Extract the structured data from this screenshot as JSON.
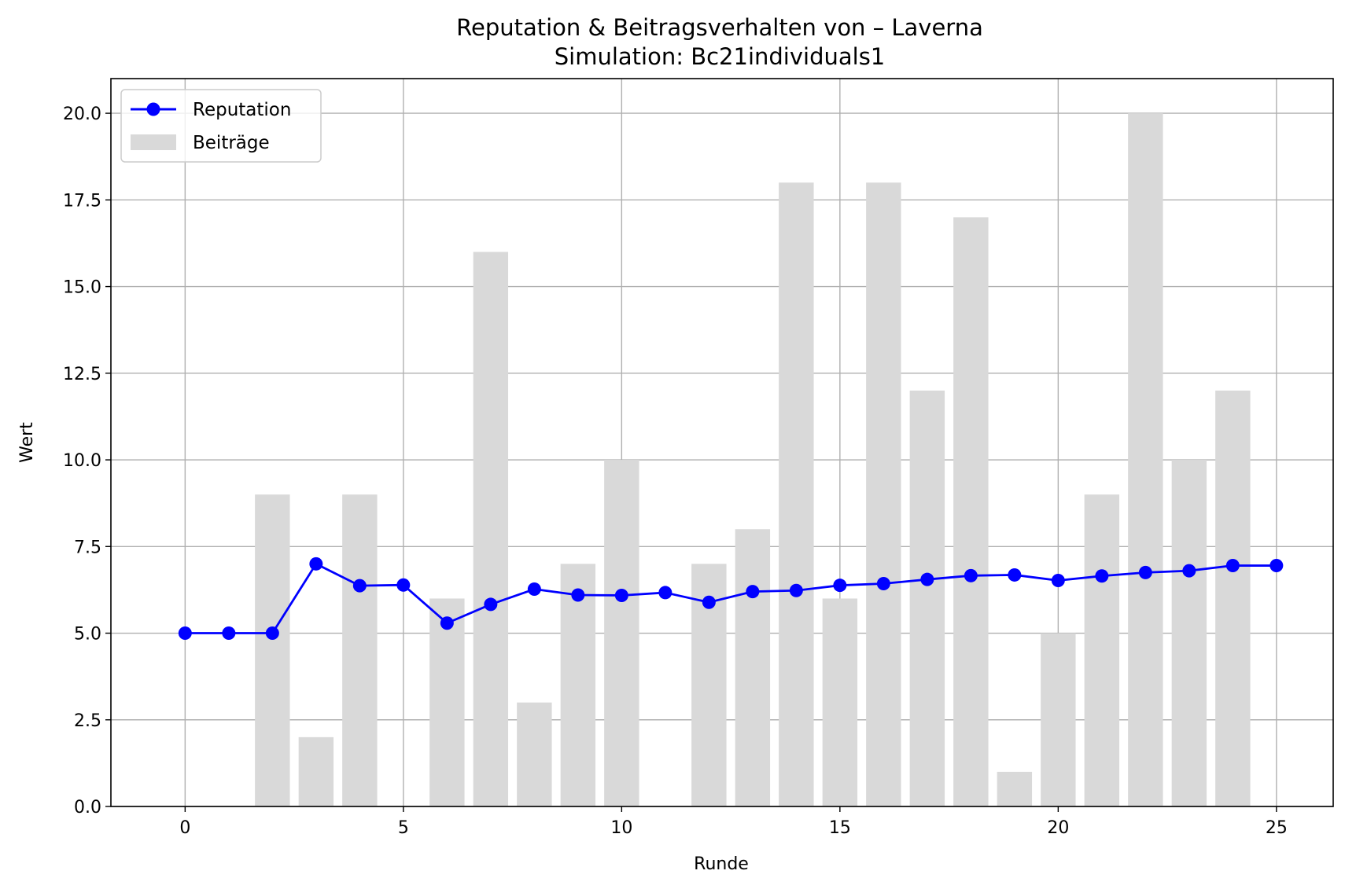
{
  "chart_data": {
    "type": "bar",
    "title": "Reputation & Beitragsverhalten von – Laverna",
    "subtitle": "Simulation: Bc21individuals1",
    "xlabel": "Runde",
    "ylabel": "Wert",
    "xlim": [
      -1.7,
      26.3
    ],
    "ylim": [
      0,
      21
    ],
    "x_ticks": [
      0,
      5,
      10,
      15,
      20,
      25
    ],
    "y_ticks": [
      0.0,
      2.5,
      5.0,
      7.5,
      10.0,
      12.5,
      15.0,
      17.5,
      20.0
    ],
    "x_tick_labels": [
      "0",
      "5",
      "10",
      "15",
      "20",
      "25"
    ],
    "y_tick_labels": [
      "0.0",
      "2.5",
      "5.0",
      "7.5",
      "10.0",
      "12.5",
      "15.0",
      "17.5",
      "20.0"
    ],
    "grid": true,
    "legend_position": "top-left",
    "x": [
      0,
      1,
      2,
      3,
      4,
      5,
      6,
      7,
      8,
      9,
      10,
      11,
      12,
      13,
      14,
      15,
      16,
      17,
      18,
      19,
      20,
      21,
      22,
      23,
      24,
      25
    ],
    "series": [
      {
        "name": "Reputation",
        "kind": "line",
        "color": "#0000ff",
        "marker": "circle",
        "values": [
          5.0,
          5.0,
          5.0,
          7.0,
          6.37,
          6.39,
          5.29,
          5.83,
          6.27,
          6.1,
          6.09,
          6.17,
          5.89,
          6.2,
          6.23,
          6.38,
          6.43,
          6.55,
          6.66,
          6.68,
          6.52,
          6.65,
          6.75,
          6.8,
          6.95,
          6.95
        ]
      },
      {
        "name": "Beiträge",
        "kind": "bar",
        "color": "#d9d9d9",
        "values": [
          0,
          0,
          9,
          2,
          9,
          0,
          6,
          16,
          3,
          7,
          10,
          0,
          7,
          8,
          18,
          6,
          18,
          12,
          17,
          1,
          5,
          9,
          20,
          10,
          12,
          0
        ]
      }
    ]
  }
}
